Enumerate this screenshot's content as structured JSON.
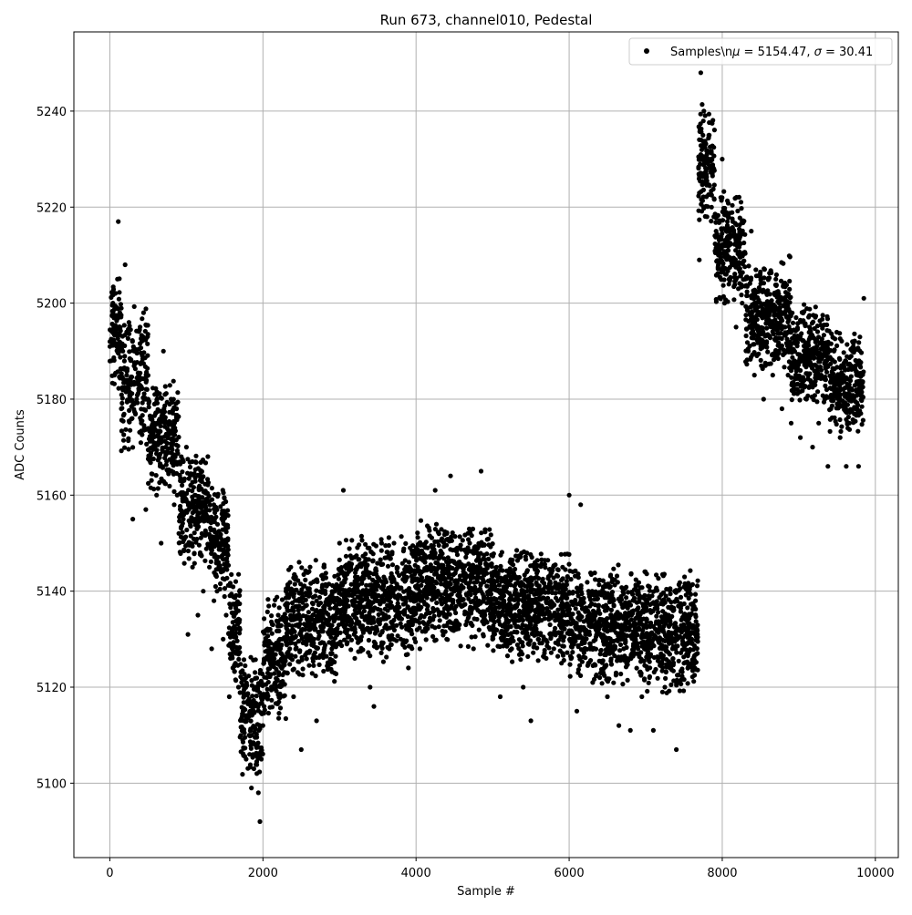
{
  "chart_data": {
    "type": "scatter",
    "title": "Run 673, channel010, Pedestal",
    "xlabel": "Sample #",
    "ylabel": "ADC Counts",
    "xlim": [
      -470,
      10300
    ],
    "ylim": [
      5084.5,
      5256.5
    ],
    "xticks": [
      0,
      2000,
      4000,
      6000,
      8000,
      10000
    ],
    "xtick_labels": [
      "0",
      "2000",
      "4000",
      "6000",
      "8000",
      "10000"
    ],
    "yticks": [
      5100,
      5120,
      5140,
      5160,
      5180,
      5200,
      5220,
      5240
    ],
    "ytick_labels": [
      "5100",
      "5120",
      "5140",
      "5160",
      "5180",
      "5200",
      "5220",
      "5240"
    ],
    "grid": true,
    "legend_position": "top-right",
    "marker_color": "#000000",
    "series": [
      {
        "name": "Samples\\nμ = 5154.47, σ = 30.41",
        "legend_label_parts": [
          "Samples\\n",
          "μ",
          " = 5154.47, ",
          "σ",
          " = 30.41"
        ],
        "points": [
          [
            0,
            5192
          ],
          [
            20,
            5188
          ],
          [
            40,
            5200
          ],
          [
            60,
            5185
          ],
          [
            80,
            5195
          ],
          [
            100,
            5205
          ],
          [
            110,
            5217
          ],
          [
            130,
            5198
          ],
          [
            150,
            5178
          ],
          [
            170,
            5190
          ],
          [
            200,
            5208
          ],
          [
            220,
            5194
          ],
          [
            250,
            5196
          ],
          [
            270,
            5184
          ],
          [
            300,
            5155
          ],
          [
            320,
            5190
          ],
          [
            350,
            5180
          ],
          [
            380,
            5185
          ],
          [
            410,
            5175
          ],
          [
            440,
            5198
          ],
          [
            470,
            5157
          ],
          [
            500,
            5180
          ],
          [
            540,
            5172
          ],
          [
            580,
            5175
          ],
          [
            610,
            5160
          ],
          [
            640,
            5168
          ],
          [
            670,
            5150
          ],
          [
            700,
            5190
          ],
          [
            730,
            5170
          ],
          [
            760,
            5165
          ],
          [
            800,
            5180
          ],
          [
            840,
            5158
          ],
          [
            880,
            5160
          ],
          [
            920,
            5163
          ],
          [
            960,
            5155
          ],
          [
            1000,
            5170
          ],
          [
            1020,
            5131
          ],
          [
            1050,
            5150
          ],
          [
            1080,
            5145
          ],
          [
            1110,
            5160
          ],
          [
            1150,
            5135
          ],
          [
            1180,
            5148
          ],
          [
            1220,
            5140
          ],
          [
            1260,
            5155
          ],
          [
            1300,
            5145
          ],
          [
            1330,
            5128
          ],
          [
            1360,
            5138
          ],
          [
            1400,
            5140
          ],
          [
            1440,
            5150
          ],
          [
            1480,
            5130
          ],
          [
            1520,
            5135
          ],
          [
            1560,
            5118
          ],
          [
            1600,
            5128
          ],
          [
            1640,
            5125
          ],
          [
            1680,
            5120
          ],
          [
            1700,
            5132
          ],
          [
            1740,
            5115
          ],
          [
            1780,
            5105
          ],
          [
            1820,
            5110
          ],
          [
            1850,
            5099
          ],
          [
            1880,
            5115
          ],
          [
            1900,
            5108
          ],
          [
            1920,
            5102
          ],
          [
            1940,
            5098
          ],
          [
            1960,
            5092
          ],
          [
            1980,
            5105
          ],
          [
            2000,
            5112
          ],
          [
            2050,
            5122
          ],
          [
            2100,
            5128
          ],
          [
            2150,
            5125
          ],
          [
            2200,
            5135
          ],
          [
            2250,
            5130
          ],
          [
            2300,
            5140
          ],
          [
            2350,
            5128
          ],
          [
            2400,
            5118
          ],
          [
            2450,
            5133
          ],
          [
            2500,
            5107
          ],
          [
            2550,
            5132
          ],
          [
            2600,
            5140
          ],
          [
            2650,
            5126
          ],
          [
            2700,
            5113
          ],
          [
            2750,
            5135
          ],
          [
            2800,
            5145
          ],
          [
            2850,
            5138
          ],
          [
            2900,
            5128
          ],
          [
            2950,
            5135
          ],
          [
            3000,
            5150
          ],
          [
            3050,
            5161
          ],
          [
            3100,
            5138
          ],
          [
            3150,
            5133
          ],
          [
            3200,
            5126
          ],
          [
            3250,
            5140
          ],
          [
            3300,
            5132
          ],
          [
            3350,
            5145
          ],
          [
            3400,
            5120
          ],
          [
            3450,
            5116
          ],
          [
            3500,
            5138
          ],
          [
            3550,
            5150
          ],
          [
            3600,
            5135
          ],
          [
            3650,
            5128
          ],
          [
            3700,
            5140
          ],
          [
            3750,
            5145
          ],
          [
            3800,
            5130
          ],
          [
            3850,
            5136
          ],
          [
            3900,
            5124
          ],
          [
            3950,
            5142
          ],
          [
            4000,
            5138
          ],
          [
            4050,
            5128
          ],
          [
            4100,
            5147
          ],
          [
            4150,
            5133
          ],
          [
            4200,
            5140
          ],
          [
            4250,
            5161
          ],
          [
            4300,
            5135
          ],
          [
            4350,
            5145
          ],
          [
            4400,
            5130
          ],
          [
            4450,
            5164
          ],
          [
            4500,
            5140
          ],
          [
            4550,
            5138
          ],
          [
            4600,
            5145
          ],
          [
            4650,
            5133
          ],
          [
            4700,
            5150
          ],
          [
            4750,
            5128
          ],
          [
            4800,
            5142
          ],
          [
            4850,
            5165
          ],
          [
            4900,
            5135
          ],
          [
            4950,
            5140
          ],
          [
            5000,
            5130
          ],
          [
            5050,
            5145
          ],
          [
            5100,
            5118
          ],
          [
            5150,
            5138
          ],
          [
            5200,
            5142
          ],
          [
            5250,
            5128
          ],
          [
            5300,
            5135
          ],
          [
            5350,
            5147
          ],
          [
            5400,
            5120
          ],
          [
            5450,
            5140
          ],
          [
            5500,
            5113
          ],
          [
            5550,
            5136
          ],
          [
            5600,
            5130
          ],
          [
            5650,
            5142
          ],
          [
            5700,
            5126
          ],
          [
            5750,
            5133
          ],
          [
            5800,
            5128
          ],
          [
            5850,
            5138
          ],
          [
            5900,
            5125
          ],
          [
            5950,
            5135
          ],
          [
            6000,
            5160
          ],
          [
            6050,
            5130
          ],
          [
            6100,
            5115
          ],
          [
            6150,
            5158
          ],
          [
            6200,
            5128
          ],
          [
            6250,
            5125
          ],
          [
            6300,
            5140
          ],
          [
            6350,
            5132
          ],
          [
            6400,
            5122
          ],
          [
            6450,
            5130
          ],
          [
            6500,
            5118
          ],
          [
            6550,
            5135
          ],
          [
            6600,
            5128
          ],
          [
            6650,
            5112
          ],
          [
            6700,
            5130
          ],
          [
            6750,
            5125
          ],
          [
            6800,
            5111
          ],
          [
            6850,
            5138
          ],
          [
            6900,
            5128
          ],
          [
            6950,
            5118
          ],
          [
            7000,
            5133
          ],
          [
            7050,
            5122
          ],
          [
            7100,
            5111
          ],
          [
            7150,
            5130
          ],
          [
            7200,
            5125
          ],
          [
            7250,
            5120
          ],
          [
            7300,
            5135
          ],
          [
            7350,
            5128
          ],
          [
            7400,
            5107
          ],
          [
            7450,
            5132
          ],
          [
            7500,
            5125
          ],
          [
            7550,
            5140
          ],
          [
            7600,
            5130
          ],
          [
            7650,
            5138
          ],
          [
            7700,
            5209
          ],
          [
            7720,
            5248
          ],
          [
            7740,
            5230
          ],
          [
            7760,
            5240
          ],
          [
            7780,
            5225
          ],
          [
            7800,
            5218
          ],
          [
            7830,
            5235
          ],
          [
            7860,
            5220
          ],
          [
            7890,
            5228
          ],
          [
            7920,
            5215
          ],
          [
            7950,
            5210
          ],
          [
            7980,
            5222
          ],
          [
            8000,
            5230
          ],
          [
            8030,
            5200
          ],
          [
            8060,
            5212
          ],
          [
            8100,
            5205
          ],
          [
            8140,
            5208
          ],
          [
            8180,
            5195
          ],
          [
            8220,
            5210
          ],
          [
            8260,
            5200
          ],
          [
            8300,
            5205
          ],
          [
            8340,
            5190
          ],
          [
            8380,
            5215
          ],
          [
            8420,
            5185
          ],
          [
            8460,
            5195
          ],
          [
            8500,
            5200
          ],
          [
            8540,
            5180
          ],
          [
            8580,
            5192
          ],
          [
            8620,
            5198
          ],
          [
            8660,
            5185
          ],
          [
            8700,
            5205
          ],
          [
            8740,
            5190
          ],
          [
            8780,
            5178
          ],
          [
            8820,
            5195
          ],
          [
            8860,
            5185
          ],
          [
            8900,
            5175
          ],
          [
            8940,
            5190
          ],
          [
            8980,
            5182
          ],
          [
            9020,
            5172
          ],
          [
            9060,
            5188
          ],
          [
            9100,
            5180
          ],
          [
            9140,
            5195
          ],
          [
            9180,
            5170
          ],
          [
            9220,
            5185
          ],
          [
            9260,
            5175
          ],
          [
            9300,
            5192
          ],
          [
            9340,
            5180
          ],
          [
            9380,
            5166
          ],
          [
            9420,
            5178
          ],
          [
            9460,
            5190
          ],
          [
            9500,
            5182
          ],
          [
            9540,
            5172
          ],
          [
            9580,
            5185
          ],
          [
            9620,
            5166
          ],
          [
            9660,
            5175
          ],
          [
            9700,
            5190
          ],
          [
            9740,
            5178
          ],
          [
            9780,
            5166
          ],
          [
            9820,
            5185
          ],
          [
            9850,
            5201
          ]
        ],
        "bands": [
          {
            "x0": 0,
            "x1": 150,
            "y0": 5180,
            "y1": 5208,
            "n": 90
          },
          {
            "x0": 150,
            "x1": 500,
            "y0": 5168,
            "y1": 5200,
            "n": 200
          },
          {
            "x0": 500,
            "x1": 900,
            "y0": 5160,
            "y1": 5185,
            "n": 230
          },
          {
            "x0": 900,
            "x1": 1300,
            "y0": 5145,
            "y1": 5170,
            "n": 230
          },
          {
            "x0": 1300,
            "x1": 1550,
            "y0": 5138,
            "y1": 5162,
            "n": 150
          },
          {
            "x0": 1550,
            "x1": 1700,
            "y0": 5120,
            "y1": 5145,
            "n": 90
          },
          {
            "x0": 1700,
            "x1": 2000,
            "y0": 5100,
            "y1": 5128,
            "n": 170
          },
          {
            "x0": 2000,
            "x1": 2300,
            "y0": 5112,
            "y1": 5140,
            "n": 170
          },
          {
            "x0": 2300,
            "x1": 3000,
            "y0": 5120,
            "y1": 5148,
            "n": 420
          },
          {
            "x0": 3000,
            "x1": 4000,
            "y0": 5125,
            "y1": 5152,
            "n": 620
          },
          {
            "x0": 4000,
            "x1": 5000,
            "y0": 5128,
            "y1": 5155,
            "n": 620
          },
          {
            "x0": 5000,
            "x1": 6000,
            "y0": 5124,
            "y1": 5150,
            "n": 620
          },
          {
            "x0": 6000,
            "x1": 7000,
            "y0": 5120,
            "y1": 5146,
            "n": 620
          },
          {
            "x0": 7000,
            "x1": 7680,
            "y0": 5118,
            "y1": 5145,
            "n": 420
          },
          {
            "x0": 7690,
            "x1": 7900,
            "y0": 5215,
            "y1": 5242,
            "n": 130
          },
          {
            "x0": 7900,
            "x1": 8300,
            "y0": 5198,
            "y1": 5225,
            "n": 240
          },
          {
            "x0": 8300,
            "x1": 8900,
            "y0": 5185,
            "y1": 5210,
            "n": 360
          },
          {
            "x0": 8900,
            "x1": 9400,
            "y0": 5178,
            "y1": 5200,
            "n": 300
          },
          {
            "x0": 9400,
            "x1": 9850,
            "y0": 5172,
            "y1": 5195,
            "n": 270
          }
        ]
      }
    ]
  }
}
